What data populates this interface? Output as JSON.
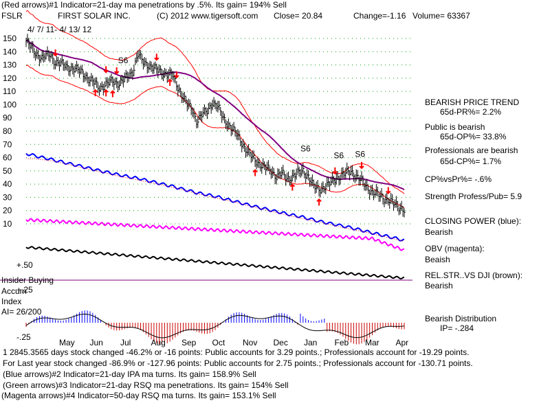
{
  "header": {
    "line1": "(Red arrows)#1 Indicator=21-day ma penetrations by .5%. Its gain= 194% Sell",
    "ticker": "FSLR",
    "company": "FIRST SOLAR INC.",
    "copyright": "(C) 2012 www.tigersoft.com",
    "close": "Close=  20.84",
    "change": "Change=-1.16",
    "volume": "Volume= 63367",
    "date_range": "4/ 7/ 11- 4/ 13/ 12",
    "s6_top": "S6"
  },
  "right_panel": {
    "trend_title": "BEARISH PRICE TREND",
    "pr": "65d-PR%= 2.2%",
    "public_label": "Public is bearish",
    "op": "65d-OP%= 33.8%",
    "pro_label": "Professionals are bearish",
    "cp": "65d-CP%= 1.7%",
    "cpvspr": "CP%vsPr%= -.6%",
    "strength": "Strength Profess/Pub= 5.9",
    "closing_power_label": "CLOSING POWER (blue):",
    "closing_power_value": "Bearish",
    "obv_label": "OBV (magenta):",
    "obv_value": "Beaish",
    "relstr_label": "REL.STR..VS DJI (brown):",
    "relstr_value": "Bearish",
    "distribution_label": "Bearish Distribution",
    "ip": "IP= -.284"
  },
  "accum_panel": {
    "insider": "Insider Buying",
    "accum": "Accum",
    "index": "Index",
    "ai": "AI= 26/200",
    "plus50": "+.50",
    "plus25": "+.25",
    "minus25": "-.25"
  },
  "footer": {
    "line1": "1 2845.3565 days stock changed -46.2% or -16 points:  Public accounts for  3.29 points.;  Professionals account for -19.29 points.",
    "line2": "For Last year stock changed -86.9% or -127.96 points:  Public accounts for  2.75 points.;  Professionals account for -130.71 points.",
    "line3": "(Blue arrows)#2 Indicator=21-day IPA ma turns. Its gain= 158.9% Sell",
    "line4": "(Green arrows)#3 Indicator=21-day RSQ ma penetrations. Its gain= 154% Sell",
    "line5": "(Magenta arrows)#4 Indicator=50-day RSQ ma turns. Its gain= 153.1% Sell"
  },
  "signals": [
    {
      "label": "S6",
      "x": 7
    },
    {
      "label": "S6",
      "x": 205
    },
    {
      "label": "S6",
      "x": 230
    },
    {
      "label": "S6",
      "x": 245
    }
  ],
  "colors": {
    "price": "#000000",
    "envelope": "#ff0000",
    "ma": "#800080",
    "closing_power": "#0000ff",
    "obv": "#ff00ff",
    "relstr": "#000000",
    "accum_bars": "#cc0000",
    "accum_line": "#000000",
    "grid": "#00a000",
    "arrow": "#ff0000"
  },
  "chart_data": {
    "type": "line",
    "title": "FSLR  FIRST SOLAR INC.",
    "ylim": [
      10,
      150
    ],
    "yticks": [
      150,
      140,
      130,
      120,
      110,
      100,
      90,
      80,
      70,
      60,
      50,
      40,
      30,
      20,
      10
    ],
    "months": [
      "May",
      "Jun",
      "Jul",
      "Aug",
      "Sep",
      "Oct",
      "Nov",
      "Dec",
      "Jan",
      "Feb",
      "Mar",
      "Apr"
    ],
    "price_anchors": [
      [
        0,
        148
      ],
      [
        6,
        140
      ],
      [
        12,
        135
      ],
      [
        18,
        138
      ],
      [
        22,
        132
      ],
      [
        28,
        130
      ],
      [
        35,
        127
      ],
      [
        42,
        125
      ],
      [
        48,
        118
      ],
      [
        52,
        116
      ],
      [
        55,
        113
      ],
      [
        60,
        115
      ],
      [
        65,
        118
      ],
      [
        70,
        116
      ],
      [
        75,
        120
      ],
      [
        80,
        125
      ],
      [
        84,
        138
      ],
      [
        88,
        132
      ],
      [
        92,
        130
      ],
      [
        98,
        126
      ],
      [
        104,
        124
      ],
      [
        110,
        122
      ],
      [
        113,
        115
      ],
      [
        117,
        108
      ],
      [
        121,
        100
      ],
      [
        125,
        96
      ],
      [
        128,
        88
      ],
      [
        132,
        92
      ],
      [
        136,
        95
      ],
      [
        140,
        102
      ],
      [
        144,
        98
      ],
      [
        148,
        90
      ],
      [
        152,
        85
      ],
      [
        156,
        80
      ],
      [
        160,
        75
      ],
      [
        164,
        68
      ],
      [
        168,
        62
      ],
      [
        172,
        58
      ],
      [
        176,
        55
      ],
      [
        180,
        52
      ],
      [
        184,
        50
      ],
      [
        188,
        46
      ],
      [
        192,
        48
      ],
      [
        196,
        44
      ],
      [
        200,
        46
      ],
      [
        204,
        48
      ],
      [
        208,
        50
      ],
      [
        212,
        46
      ],
      [
        216,
        38
      ],
      [
        220,
        36
      ],
      [
        224,
        38
      ],
      [
        228,
        40
      ],
      [
        232,
        44
      ],
      [
        236,
        46
      ],
      [
        240,
        48
      ],
      [
        244,
        50
      ],
      [
        248,
        46
      ],
      [
        252,
        42
      ],
      [
        256,
        38
      ],
      [
        260,
        34
      ],
      [
        264,
        32
      ],
      [
        268,
        30
      ],
      [
        272,
        28
      ],
      [
        276,
        25
      ],
      [
        280,
        23
      ],
      [
        284,
        21
      ]
    ],
    "series": [
      {
        "name": "Price"
      },
      {
        "name": "21-day MA"
      },
      {
        "name": "Upper band"
      },
      {
        "name": "Lower band"
      },
      {
        "name": "Closing Power"
      },
      {
        "name": "OBV"
      },
      {
        "name": "Rel.Str vs DJI"
      },
      {
        "name": "Accumulation Index"
      }
    ],
    "accum_ylim": [
      -0.25,
      0.5
    ]
  }
}
